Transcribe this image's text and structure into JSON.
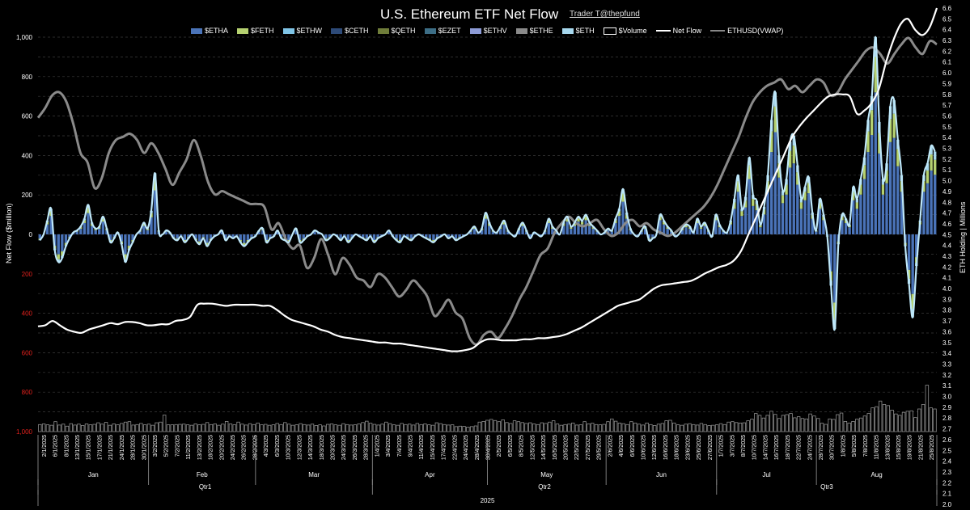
{
  "chart_data": {
    "type": "bar",
    "title": "U.S. Ethereum ETF Net Flow",
    "credit": "Trader T@thepfund",
    "ylabel_left": "Net Flow ($million)",
    "ylabel_right": "ETH Holding | Millions",
    "left_axis": {
      "ylim": [
        -1000,
        1000
      ],
      "tick_values": [
        1000,
        800,
        600,
        400,
        200,
        0,
        -200,
        -400,
        -600,
        -800,
        -1000
      ],
      "tick_labels": [
        "1,000",
        "800",
        "600",
        "400",
        "200",
        "0",
        "200",
        "400",
        "600",
        "800",
        "1,000"
      ],
      "negative_label_color": "#e0201c"
    },
    "right_axis": {
      "ylim": [
        2.0,
        6.6
      ],
      "ticks": [
        "2.0",
        "2.1",
        "2.2",
        "2.3",
        "2.4",
        "2.5",
        "2.6",
        "2.7",
        "2.8",
        "2.9",
        "3.0",
        "3.1",
        "3.2",
        "3.3",
        "3.4",
        "3.5",
        "3.6",
        "3.7",
        "3.8",
        "3.9",
        "4.0",
        "4.1",
        "4.2",
        "4.3",
        "4.4",
        "4.5",
        "4.6",
        "4.7",
        "4.8",
        "4.9",
        "5.0",
        "5.1",
        "5.2",
        "5.3",
        "5.4",
        "5.5",
        "5.6",
        "5.7",
        "5.8",
        "5.9",
        "6.0",
        "6.1",
        "6.2",
        "6.3",
        "6.4",
        "6.5",
        "6.6"
      ]
    },
    "grid": true,
    "legend_position": "top",
    "legend": [
      {
        "name": "$ETHA",
        "kind": "bar",
        "color": "#4a73b8"
      },
      {
        "name": "$FETH",
        "kind": "bar",
        "color": "#b5d170"
      },
      {
        "name": "$ETHW",
        "kind": "bar",
        "color": "#7fc4e6"
      },
      {
        "name": "$CETH",
        "kind": "bar",
        "color": "#2d4a78"
      },
      {
        "name": "$QETH",
        "kind": "bar",
        "color": "#6f7d3a"
      },
      {
        "name": "$EZET",
        "kind": "bar",
        "color": "#3d6e86"
      },
      {
        "name": "$ETHV",
        "kind": "bar",
        "color": "#8d9bd6"
      },
      {
        "name": "$ETHE",
        "kind": "bar",
        "color": "#8a8a8a"
      },
      {
        "name": "$ETH",
        "kind": "bar",
        "color": "#a7d8ee"
      },
      {
        "name": "$Volume",
        "kind": "bar",
        "color": "#000000"
      },
      {
        "name": "Net Flow",
        "kind": "line",
        "color": "#ffffff"
      },
      {
        "name": "ETHUSD(VWAP)",
        "kind": "line",
        "color": "#888888"
      }
    ],
    "x_tick_labels": [
      "2/1/2025",
      "6/1/2025",
      "8/1/2025",
      "13/1/2025",
      "15/1/2025",
      "17/1/2025",
      "21/1/2025",
      "24/1/2025",
      "28/1/2025",
      "30/1/2025",
      "3/2/2025",
      "5/2/2025",
      "7/2/2025",
      "11/2/2025",
      "13/2/2025",
      "18/2/2025",
      "20/2/2025",
      "24/2/2025",
      "26/2/2025",
      "28/2/2025",
      "4/3/2025",
      "6/3/2025",
      "10/3/2025",
      "12/3/2025",
      "14/3/2025",
      "18/3/2025",
      "20/3/2025",
      "24/3/2025",
      "26/3/2025",
      "28/3/2025",
      "1/4/2025",
      "3/4/2025",
      "7/4/2025",
      "9/4/2025",
      "11/4/2025",
      "15/4/2025",
      "17/4/2025",
      "22/4/2025",
      "24/4/2025",
      "28/4/2025",
      "30/4/2025",
      "2/5/2025",
      "6/5/2025",
      "8/5/2025",
      "12/5/2025",
      "14/5/2025",
      "16/5/2025",
      "20/5/2025",
      "22/5/2025",
      "27/5/2025",
      "29/5/2025",
      "2/6/2025",
      "4/6/2025",
      "6/6/2025",
      "10/6/2025",
      "12/6/2025",
      "16/6/2025",
      "18/6/2025",
      "23/6/2025",
      "25/6/2025",
      "27/6/2025",
      "1/7/2025",
      "3/7/2025",
      "8/7/2025",
      "10/7/2025",
      "14/7/2025",
      "16/7/2025",
      "18/7/2025",
      "22/7/2025",
      "24/7/2025",
      "28/7/2025",
      "30/7/2025",
      "1/8/2025",
      "5/8/2025",
      "7/8/2025",
      "11/8/2025",
      "13/8/2025",
      "15/8/2025",
      "19/8/2025",
      "21/8/2025",
      "25/8/2025"
    ],
    "months": [
      "Jan",
      "Feb",
      "Mar",
      "Apr",
      "May",
      "Jun",
      "Jul",
      "Aug"
    ],
    "quarters": [
      "Qtr1",
      "Qtr2",
      "Qtr3"
    ],
    "year": "2025",
    "net_flow": [
      -30,
      0,
      70,
      130,
      -80,
      -140,
      -120,
      -60,
      -20,
      10,
      20,
      40,
      80,
      150,
      60,
      30,
      40,
      90,
      30,
      -40,
      -20,
      10,
      -50,
      -140,
      -80,
      -40,
      0,
      20,
      60,
      30,
      120,
      310,
      20,
      0,
      20,
      10,
      -20,
      -30,
      -10,
      -40,
      -20,
      0,
      -30,
      -50,
      -20,
      -60,
      -30,
      -10,
      0,
      20,
      -30,
      -10,
      -20,
      -10,
      -40,
      -60,
      -40,
      -20,
      -10,
      20,
      30,
      -40,
      -20,
      -10,
      20,
      -20,
      -30,
      -40,
      0,
      30,
      -40,
      -30,
      -10,
      0,
      20,
      10,
      0,
      -30,
      -20,
      0,
      -10,
      -30,
      -10,
      -40,
      -20,
      0,
      -10,
      -20,
      -30,
      -10,
      -40,
      -20,
      -10,
      0,
      20,
      -10,
      -30,
      -40,
      -10,
      -20,
      -30,
      -10,
      0,
      -10,
      -20,
      -30,
      -40,
      -20,
      -10,
      0,
      -20,
      -10,
      -30,
      -20,
      -10,
      0,
      20,
      40,
      10,
      30,
      110,
      60,
      20,
      10,
      40,
      70,
      20,
      0,
      -10,
      30,
      60,
      20,
      -20,
      10,
      0,
      -10,
      20,
      80,
      40,
      20,
      0,
      60,
      90,
      40,
      60,
      90,
      70,
      100,
      60,
      40,
      20,
      0,
      10,
      30,
      20,
      80,
      130,
      230,
      110,
      30,
      0,
      -10,
      20,
      40,
      -30,
      -20,
      0,
      100,
      70,
      40,
      20,
      -10,
      0,
      30,
      50,
      40,
      10,
      80,
      40,
      60,
      20,
      -10,
      100,
      50,
      20,
      10,
      70,
      180,
      300,
      130,
      190,
      390,
      200,
      170,
      50,
      140,
      300,
      580,
      720,
      400,
      220,
      280,
      470,
      500,
      350,
      180,
      240,
      290,
      110,
      20,
      180,
      100,
      -10,
      -260,
      -480,
      -50,
      100,
      80,
      50,
      240,
      180,
      280,
      390,
      580,
      700,
      1000,
      570,
      280,
      360,
      650,
      680,
      480,
      300,
      -60,
      -250,
      -420,
      -160,
      70,
      300,
      360,
      450,
      420
    ],
    "eth_holding_m": [
      3.65,
      3.66,
      3.7,
      3.66,
      3.62,
      3.6,
      3.59,
      3.62,
      3.64,
      3.66,
      3.68,
      3.67,
      3.69,
      3.69,
      3.68,
      3.66,
      3.66,
      3.67,
      3.67,
      3.7,
      3.71,
      3.74,
      3.85,
      3.86,
      3.86,
      3.85,
      3.84,
      3.85,
      3.85,
      3.85,
      3.85,
      3.84,
      3.84,
      3.8,
      3.75,
      3.71,
      3.69,
      3.67,
      3.65,
      3.62,
      3.6,
      3.57,
      3.55,
      3.54,
      3.53,
      3.52,
      3.51,
      3.5,
      3.5,
      3.49,
      3.49,
      3.48,
      3.47,
      3.46,
      3.45,
      3.44,
      3.43,
      3.42,
      3.42,
      3.43,
      3.45,
      3.5,
      3.53,
      3.53,
      3.52,
      3.52,
      3.52,
      3.53,
      3.53,
      3.54,
      3.54,
      3.55,
      3.56,
      3.58,
      3.61,
      3.64,
      3.68,
      3.72,
      3.76,
      3.8,
      3.84,
      3.86,
      3.88,
      3.9,
      3.95,
      4.0,
      4.03,
      4.04,
      4.05,
      4.06,
      4.07,
      4.1,
      4.14,
      4.17,
      4.2,
      4.22,
      4.26,
      4.35,
      4.5,
      4.65,
      4.8,
      4.95,
      5.1,
      5.25,
      5.4,
      5.5,
      5.58,
      5.65,
      5.72,
      5.78,
      5.8,
      5.8,
      5.78,
      5.62,
      5.65,
      5.72,
      5.85,
      6.1,
      6.3,
      6.45,
      6.5,
      6.4,
      6.35,
      6.42,
      6.6
    ],
    "eth_usd_vwap_norm": [
      0.74,
      0.77,
      0.81,
      0.82,
      0.79,
      0.72,
      0.63,
      0.6,
      0.52,
      0.55,
      0.63,
      0.67,
      0.68,
      0.69,
      0.67,
      0.63,
      0.66,
      0.63,
      0.58,
      0.53,
      0.57,
      0.61,
      0.67,
      0.62,
      0.54,
      0.5,
      0.51,
      0.5,
      0.49,
      0.48,
      0.47,
      0.47,
      0.46,
      0.39,
      0.41,
      0.36,
      0.33,
      0.34,
      0.27,
      0.3,
      0.36,
      0.31,
      0.25,
      0.3,
      0.28,
      0.24,
      0.23,
      0.21,
      0.25,
      0.24,
      0.21,
      0.18,
      0.2,
      0.23,
      0.21,
      0.18,
      0.12,
      0.14,
      0.17,
      0.13,
      0.11,
      0.05,
      0.03,
      0.06,
      0.07,
      0.05,
      0.08,
      0.12,
      0.17,
      0.21,
      0.26,
      0.31,
      0.33,
      0.38,
      0.41,
      0.43,
      0.41,
      0.4,
      0.41,
      0.42,
      0.39,
      0.37,
      0.38,
      0.41,
      0.42,
      0.4,
      0.41,
      0.39,
      0.38,
      0.37,
      0.38,
      0.4,
      0.42,
      0.44,
      0.46,
      0.49,
      0.53,
      0.58,
      0.63,
      0.68,
      0.74,
      0.79,
      0.82,
      0.84,
      0.85,
      0.86,
      0.83,
      0.84,
      0.82,
      0.84,
      0.86,
      0.85,
      0.81,
      0.82,
      0.86,
      0.89,
      0.92,
      0.95,
      0.96,
      0.94,
      0.91,
      0.94,
      0.97,
      0.99,
      0.96,
      0.94,
      0.98,
      0.97
    ],
    "volume_norm": [
      0.31,
      0.34,
      0.3,
      0.28,
      0.44,
      0.29,
      0.33,
      0.24,
      0.35,
      0.29,
      0.33,
      0.27,
      0.34,
      0.3,
      0.32,
      0.39,
      0.33,
      0.41,
      0.28,
      0.34,
      0.3,
      0.36,
      0.42,
      0.44,
      0.29,
      0.31,
      0.36,
      0.3,
      0.33,
      0.28,
      0.39,
      0.42,
      0.73,
      0.3,
      0.3,
      0.31,
      0.32,
      0.33,
      0.3,
      0.28,
      0.34,
      0.3,
      0.32,
      0.4,
      0.31,
      0.34,
      0.28,
      0.33,
      0.45,
      0.34,
      0.3,
      0.42,
      0.33,
      0.29,
      0.35,
      0.31,
      0.38,
      0.3,
      0.32,
      0.28,
      0.3,
      0.36,
      0.31,
      0.4,
      0.33,
      0.28,
      0.3,
      0.35,
      0.31,
      0.29,
      0.33,
      0.27,
      0.3,
      0.25,
      0.32,
      0.34,
      0.3,
      0.28,
      0.35,
      0.31,
      0.29,
      0.3,
      0.34,
      0.4,
      0.46,
      0.37,
      0.32,
      0.29,
      0.33,
      0.42,
      0.35,
      0.3,
      0.28,
      0.36,
      0.31,
      0.33,
      0.29,
      0.36,
      0.31,
      0.34,
      0.3,
      0.28,
      0.39,
      0.35,
      0.31,
      0.29,
      0.3,
      0.22,
      0.24,
      0.23,
      0.2,
      0.22,
      0.25,
      0.42,
      0.45,
      0.5,
      0.54,
      0.49,
      0.44,
      0.52,
      0.4,
      0.36,
      0.48,
      0.44,
      0.4,
      0.36,
      0.39,
      0.34,
      0.31,
      0.39,
      0.36,
      0.42,
      0.48,
      0.34,
      0.28,
      0.31,
      0.33,
      0.38,
      0.29,
      0.3,
      0.44,
      0.34,
      0.37,
      0.31,
      0.3,
      0.32,
      0.44,
      0.56,
      0.46,
      0.38,
      0.35,
      0.31,
      0.44,
      0.38,
      0.33,
      0.29,
      0.38,
      0.31,
      0.27,
      0.33,
      0.36,
      0.48,
      0.5,
      0.38,
      0.3,
      0.28,
      0.33,
      0.35,
      0.31,
      0.29,
      0.36,
      0.31,
      0.27,
      0.28,
      0.3,
      0.35,
      0.31,
      0.42,
      0.44,
      0.4,
      0.38,
      0.39,
      0.48,
      0.55,
      0.8,
      0.72,
      0.6,
      0.72,
      0.9,
      0.76,
      0.58,
      0.72,
      0.75,
      0.8,
      0.61,
      0.66,
      0.58,
      0.56,
      0.78,
      0.69,
      0.58,
      0.37,
      0.32,
      0.56,
      0.54,
      0.75,
      0.82,
      0.45,
      0.38,
      0.45,
      0.55,
      0.6,
      0.69,
      0.8,
      1.05,
      1.1,
      1.35,
      1.2,
      1.15,
      0.95,
      0.78,
      0.72,
      0.85,
      0.9,
      0.92,
      0.62,
      1.0,
      1.2,
      2.05,
      1.05,
      1.0
    ]
  }
}
